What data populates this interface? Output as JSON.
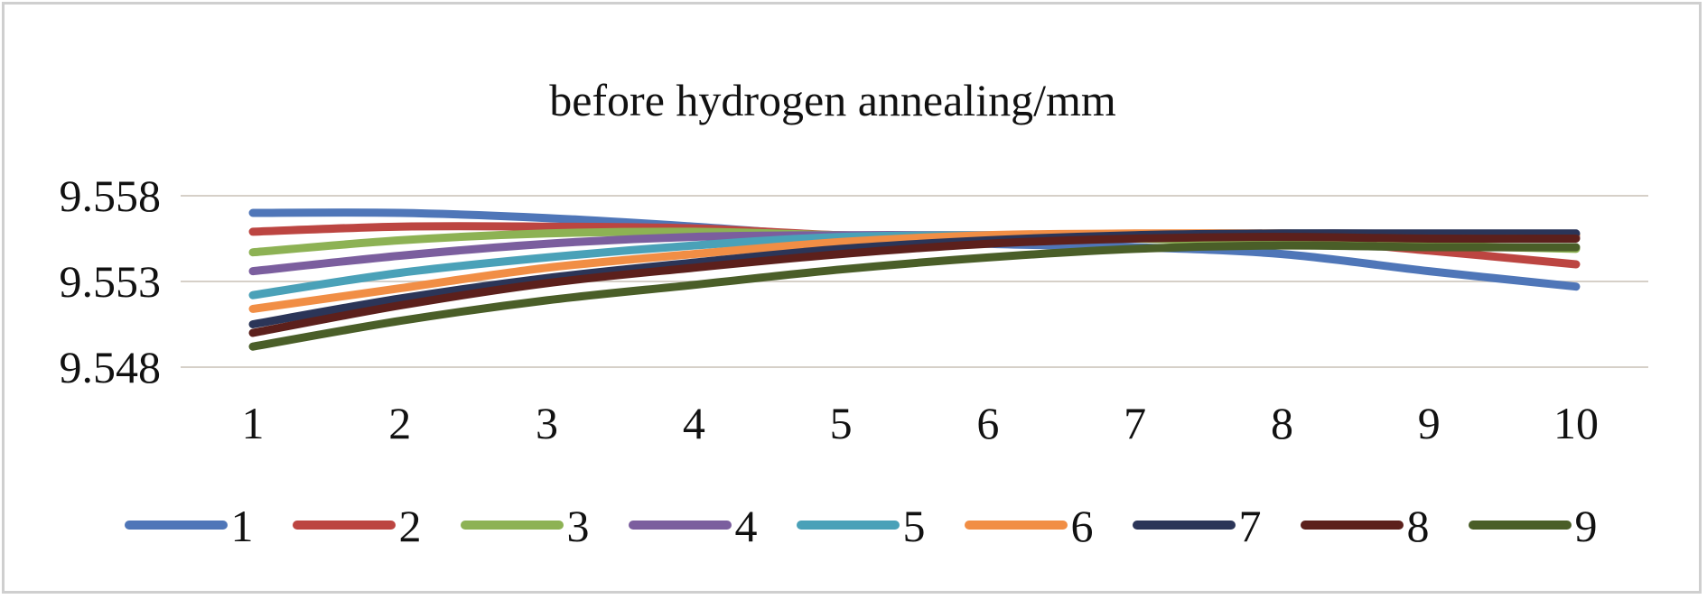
{
  "chart_data": {
    "type": "line",
    "title": "before hydrogen annealing/mm",
    "xlabel": "",
    "ylabel": "",
    "x": [
      "1",
      "2",
      "3",
      "4",
      "5",
      "6",
      "7",
      "8",
      "9",
      "10"
    ],
    "ylim": [
      9.548,
      9.558
    ],
    "yticks": [
      "9.558",
      "9.553",
      "9.548"
    ],
    "grid": true,
    "legend": "bottom",
    "series": [
      {
        "name": "1",
        "color": "#4f76b8",
        "values": [
          9.557,
          9.557,
          9.5567,
          9.5562,
          9.5556,
          9.5552,
          9.555,
          9.5546,
          9.5536,
          9.5527
        ]
      },
      {
        "name": "2",
        "color": "#bc4541",
        "values": [
          9.5559,
          9.5562,
          9.5562,
          9.5561,
          9.5557,
          9.5556,
          9.5557,
          9.5555,
          9.5548,
          9.554
        ]
      },
      {
        "name": "3",
        "color": "#8db254",
        "values": [
          9.5547,
          9.5554,
          9.5558,
          9.5559,
          9.5557,
          9.5556,
          9.5555,
          9.5553,
          9.5551,
          9.5549
        ]
      },
      {
        "name": "4",
        "color": "#7b5e9e",
        "values": [
          9.5536,
          9.5545,
          9.5552,
          9.5556,
          9.5557,
          9.5557,
          9.5557,
          9.5557,
          9.5557,
          9.5556
        ]
      },
      {
        "name": "5",
        "color": "#4aa1b8",
        "values": [
          9.5522,
          9.5535,
          9.5544,
          9.5551,
          9.5556,
          9.5557,
          9.5557,
          9.5558,
          9.5557,
          9.5557
        ]
      },
      {
        "name": "6",
        "color": "#f18e45",
        "values": [
          9.5514,
          9.5526,
          9.5538,
          9.5546,
          9.5553,
          9.5557,
          9.5558,
          9.5558,
          9.5557,
          9.5557
        ]
      },
      {
        "name": "7",
        "color": "#2b3558",
        "values": [
          9.5505,
          9.552,
          9.5532,
          9.5541,
          9.5549,
          9.5554,
          9.5557,
          9.5558,
          9.5558,
          9.5558
        ]
      },
      {
        "name": "8",
        "color": "#5c201c",
        "values": [
          9.55,
          9.5516,
          9.5529,
          9.5538,
          9.5546,
          9.5552,
          9.5555,
          9.5556,
          9.5555,
          9.5555
        ]
      },
      {
        "name": "9",
        "color": "#4a5e28",
        "values": [
          9.5492,
          9.5507,
          9.5519,
          9.5528,
          9.5537,
          9.5544,
          9.5549,
          9.5551,
          9.555,
          9.555
        ]
      }
    ]
  }
}
